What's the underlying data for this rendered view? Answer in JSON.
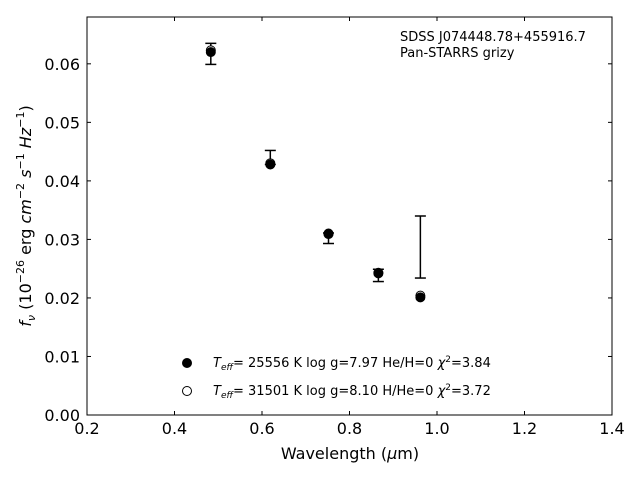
{
  "chart_data": {
    "type": "scatter",
    "annotations": [
      "SDSS J074448.78+455916.7",
      "Pan-STARRS grizy"
    ],
    "xlabel": "Wavelength (μm)",
    "ylabel": "f_ν (10^-26 erg cm^-2 s^-1 Hz^-1)",
    "xlim": [
      0.2,
      1.4
    ],
    "ylim": [
      0.0,
      0.068
    ],
    "xticks": [
      0.2,
      0.4,
      0.6,
      0.8,
      1.0,
      1.2,
      1.4
    ],
    "xtick_labels": [
      "0.2",
      "0.4",
      "0.6",
      "0.8",
      "1.0",
      "1.2",
      "1.4"
    ],
    "yticks": [
      0.0,
      0.01,
      0.02,
      0.03,
      0.04,
      0.05,
      0.06
    ],
    "ytick_labels": [
      "0.00",
      "0.01",
      "0.02",
      "0.03",
      "0.04",
      "0.05",
      "0.06"
    ],
    "grid": false,
    "legend_position": "bottom-center",
    "observed": {
      "x": [
        0.483,
        0.619,
        0.752,
        0.866,
        0.962
      ],
      "y": [
        0.0617,
        0.0437,
        0.0302,
        0.024,
        0.0287
      ],
      "yerr_low": [
        0.0018,
        0.0009,
        0.0009,
        0.0012,
        0.0053
      ],
      "yerr_high": [
        0.0018,
        0.0015,
        0.0009,
        0.0009,
        0.0053
      ]
    },
    "series": [
      {
        "label": "T_eff= 25556 K  log g=7.97  He/H=0  χ²=3.84",
        "legend_parts": [
          "T",
          "eff",
          "= 25556 K  log g=7.97  He/H=0  ",
          "χ",
          "2",
          "=3.84"
        ],
        "marker": "filled-circle",
        "x": [
          0.483,
          0.619,
          0.752,
          0.866,
          0.962
        ],
        "y": [
          0.062,
          0.0428,
          0.0309,
          0.0242,
          0.0201
        ]
      },
      {
        "label": "T_eff= 31501 K  log g=8.10  H/He=0  χ²=3.72",
        "legend_parts": [
          "T",
          "eff",
          "= 31501 K  log g=8.10  H/He=0  ",
          "χ",
          "2",
          "=3.72"
        ],
        "marker": "open-circle",
        "x": [
          0.483,
          0.619,
          0.752,
          0.866,
          0.962
        ],
        "y": [
          0.0623,
          0.043,
          0.031,
          0.0243,
          0.0204
        ]
      }
    ],
    "colors": {
      "marker": "#000000",
      "axis": "#000000",
      "background": "#ffffff"
    }
  }
}
